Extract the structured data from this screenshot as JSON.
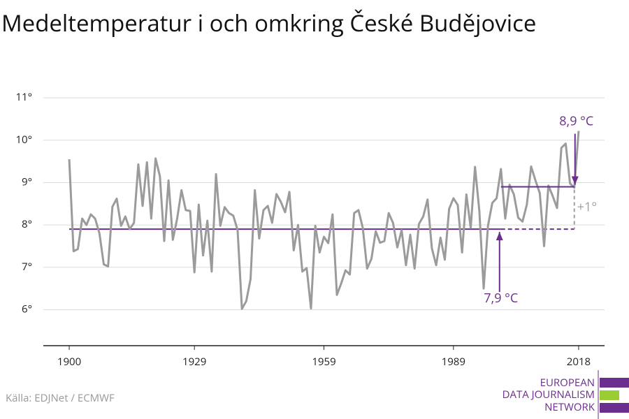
{
  "chart_data": {
    "type": "line",
    "title": "Medeltemperatur i och omkring České Budějovice",
    "source": "Källa: EDJNet / ECMWF",
    "logo_lines": [
      "EUROPEAN",
      "DATA JOURNALISM",
      "NETWORK"
    ],
    "x": [
      1900,
      1901,
      1902,
      1903,
      1904,
      1905,
      1906,
      1907,
      1908,
      1909,
      1910,
      1911,
      1912,
      1913,
      1914,
      1915,
      1916,
      1917,
      1918,
      1919,
      1920,
      1921,
      1922,
      1923,
      1924,
      1925,
      1926,
      1927,
      1928,
      1929,
      1930,
      1931,
      1932,
      1933,
      1934,
      1935,
      1936,
      1937,
      1938,
      1939,
      1940,
      1941,
      1942,
      1943,
      1944,
      1945,
      1946,
      1947,
      1948,
      1949,
      1950,
      1951,
      1952,
      1953,
      1954,
      1955,
      1956,
      1957,
      1958,
      1959,
      1960,
      1961,
      1962,
      1963,
      1964,
      1965,
      1966,
      1967,
      1968,
      1969,
      1970,
      1971,
      1972,
      1973,
      1974,
      1975,
      1976,
      1977,
      1978,
      1979,
      1980,
      1981,
      1982,
      1983,
      1984,
      1985,
      1986,
      1987,
      1988,
      1989,
      1990,
      1991,
      1992,
      1993,
      1994,
      1995,
      1996,
      1997,
      1998,
      1999,
      2000,
      2001,
      2002,
      2003,
      2004,
      2005,
      2006,
      2007,
      2008,
      2009,
      2010,
      2011,
      2012,
      2013,
      2014,
      2015,
      2016,
      2017,
      2018
    ],
    "series": [
      {
        "color": "#9b9b9b",
        "values": [
          9.55,
          7.38,
          7.43,
          8.15,
          8.0,
          8.25,
          8.15,
          7.8,
          7.07,
          7.02,
          8.43,
          8.62,
          7.98,
          8.2,
          7.9,
          8.05,
          9.43,
          8.45,
          9.48,
          8.15,
          9.57,
          9.15,
          7.62,
          9.05,
          7.65,
          8.15,
          8.82,
          8.35,
          8.33,
          6.88,
          8.48,
          7.28,
          8.1,
          6.9,
          9.2,
          7.98,
          8.42,
          8.28,
          8.22,
          7.88,
          6.02,
          6.2,
          6.72,
          8.82,
          7.68,
          8.35,
          8.45,
          8.05,
          8.73,
          8.55,
          8.3,
          8.78,
          7.4,
          8.0,
          6.9,
          6.98,
          6.03,
          7.98,
          7.35,
          7.72,
          7.57,
          8.25,
          6.35,
          6.62,
          6.93,
          6.83,
          8.28,
          8.35,
          7.93,
          6.97,
          7.2,
          7.85,
          7.58,
          7.62,
          8.28,
          8.05,
          7.47,
          7.88,
          7.05,
          7.77,
          6.97,
          8.02,
          8.2,
          8.6,
          7.45,
          7.05,
          7.7,
          7.18,
          8.38,
          8.63,
          8.47,
          7.35,
          8.72,
          7.93,
          9.37,
          8.33,
          6.5,
          7.98,
          8.52,
          8.63,
          9.32,
          8.15,
          8.95,
          8.72,
          8.17,
          8.08,
          8.48,
          9.38,
          9.05,
          8.75,
          7.5,
          8.93,
          8.68,
          8.4,
          9.82,
          9.92,
          8.98,
          8.88,
          10.22
        ]
      }
    ],
    "xlim": [
      1894,
      2024
    ],
    "xticks": [
      1900,
      1929,
      1959,
      1989,
      2018
    ],
    "ylim": [
      5.15,
      11.2
    ],
    "yticks": [
      {
        "value": 6,
        "label": "6°"
      },
      {
        "value": 7,
        "label": "7°"
      },
      {
        "value": 8,
        "label": "8°"
      },
      {
        "value": 9,
        "label": "9°"
      },
      {
        "value": 10,
        "label": "10°"
      },
      {
        "value": 11,
        "label": "11°"
      }
    ],
    "grid": true,
    "annotations": [
      {
        "label": "7,9 °C",
        "value": 7.9,
        "x_start": 1900,
        "dashed_from": 2000,
        "x_end": 2017,
        "color": "#6b2d8e"
      },
      {
        "label": "8,9 °C",
        "value": 8.9,
        "x_start": 2000,
        "x_end": 2017,
        "color": "#6b2d8e"
      }
    ],
    "difference": {
      "label": "+1°",
      "value": 1,
      "color": "#a0a0a0"
    }
  }
}
